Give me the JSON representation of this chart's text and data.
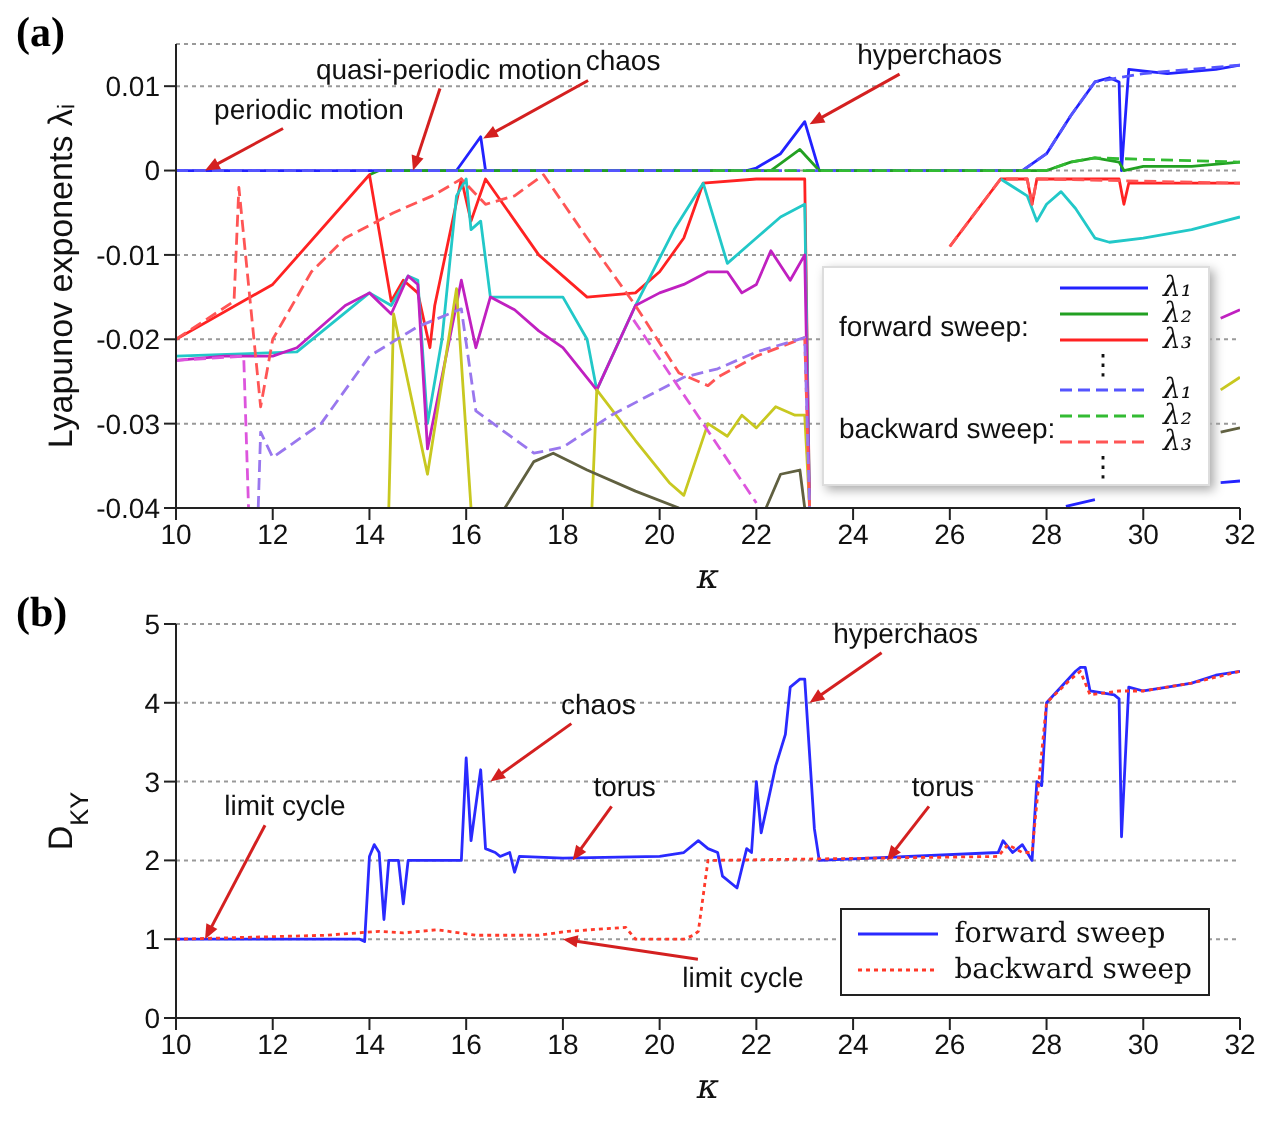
{
  "chart_data": [
    {
      "type": "line",
      "title": "(a)",
      "xlabel": "κ",
      "ylabel": "Lyapunov exponents λᵢ",
      "xlim": [
        10,
        32
      ],
      "xticks": [
        10,
        12,
        14,
        16,
        18,
        20,
        22,
        24,
        26,
        28,
        30,
        32
      ],
      "ylim": [
        -0.04,
        0.015
      ],
      "yticks": [
        -0.04,
        -0.03,
        -0.02,
        -0.01,
        0,
        0.01
      ],
      "grid": "y",
      "legend": "bottom right",
      "annotations": [
        {
          "text": "periodic motion",
          "x": 10.6,
          "y": 0
        },
        {
          "text": "quasi-periodic motion",
          "x": 14.9,
          "y": 0
        },
        {
          "text": "chaos",
          "x": 16.35,
          "y": 0.0038
        },
        {
          "text": "hyperchaos",
          "x": 23.1,
          "y": 0.0055
        },
        "forward sweep:",
        "⋮",
        "backward sweep:",
        "⋮"
      ],
      "series": [
        {
          "name": "λ₁",
          "color": "#2222ff",
          "x": [
            10,
            15.8,
            16.3,
            16.4,
            21.8,
            22.0,
            22.5,
            23.0,
            23.3,
            27.5,
            28.0,
            28.5,
            29.0,
            29.3,
            29.5,
            29.55,
            29.7,
            30.5,
            31.5,
            32
          ],
          "values": [
            0,
            0,
            0.004,
            0,
            0,
            0.0003,
            0.002,
            0.0058,
            0,
            0,
            0.002,
            0.0065,
            0.0105,
            0.011,
            0.0105,
            0,
            0.012,
            0.0115,
            0.012,
            0.0125
          ]
        },
        {
          "name": "λ₂",
          "color": "#22a022",
          "x": [
            14,
            14.2,
            22.3,
            22.9,
            23.3,
            28,
            28.5,
            29,
            29.5,
            29.6,
            30,
            31,
            32
          ],
          "values": [
            -0.0005,
            0,
            0,
            0.0025,
            0,
            0,
            0.001,
            0.0015,
            0.001,
            0,
            0.0005,
            0.0005,
            0.001
          ]
        },
        {
          "name": "λ₃",
          "color": "#ff2222",
          "x": [
            10,
            12,
            14,
            14.45,
            14.7,
            15.0,
            15.25,
            15.35,
            15.9,
            16.1,
            16.4,
            17.5,
            18.5,
            19.5,
            20.0,
            20.5,
            20.9,
            22,
            23.0,
            23.1,
            23.15,
            26.0,
            27.05,
            27.6,
            27.7,
            27.8,
            29.5,
            29.6,
            29.7,
            32
          ],
          "values": [
            -0.02,
            -0.0135,
            -0.0005,
            -0.0155,
            -0.013,
            -0.0145,
            -0.021,
            -0.016,
            -0.001,
            -0.006,
            -0.001,
            -0.01,
            -0.015,
            -0.0145,
            -0.012,
            -0.008,
            -0.0015,
            -0.001,
            -0.001,
            -0.04,
            null,
            -0.009,
            -0.001,
            -0.001,
            -0.004,
            -0.001,
            -0.001,
            -0.004,
            -0.0015,
            -0.0015
          ]
        },
        {
          "color": "#22c8c8",
          "x": [
            10,
            12.5,
            14,
            14.45,
            14.8,
            15.0,
            15.2,
            15.5,
            15.8,
            16.0,
            16.1,
            16.3,
            16.5,
            17,
            18,
            18.5,
            18.7,
            19.5,
            20.3,
            20.9,
            21.4,
            22,
            22.5,
            23.0,
            23.1,
            23.15,
            27.05,
            27.6,
            27.8,
            28.0,
            28.3,
            28.6,
            29.0,
            29.3,
            30,
            31,
            32
          ],
          "values": [
            -0.022,
            -0.0215,
            -0.0145,
            -0.016,
            -0.0125,
            -0.013,
            -0.03,
            -0.02,
            -0.003,
            -0.001,
            -0.007,
            -0.006,
            -0.015,
            -0.015,
            -0.015,
            -0.02,
            -0.026,
            -0.016,
            -0.007,
            -0.0015,
            -0.011,
            -0.008,
            -0.0055,
            -0.004,
            -0.04,
            null,
            -0.001,
            -0.003,
            -0.006,
            -0.004,
            -0.0025,
            -0.0045,
            -0.008,
            -0.0085,
            -0.008,
            -0.007,
            -0.0055
          ]
        },
        {
          "color": "#c020c0",
          "x": [
            10,
            11,
            12,
            12.5,
            13.5,
            14,
            14.45,
            14.8,
            15.0,
            15.2,
            15.9,
            16.2,
            16.5,
            17,
            17.5,
            18,
            18.7,
            19.5,
            20,
            20.5,
            21,
            21.4,
            21.7,
            22,
            22.3,
            22.7,
            23,
            23.1,
            23.15,
            31.6,
            32
          ],
          "values": [
            -0.0225,
            -0.022,
            -0.022,
            -0.021,
            -0.016,
            -0.0145,
            -0.017,
            -0.0125,
            -0.0135,
            -0.033,
            -0.013,
            -0.021,
            -0.015,
            -0.0165,
            -0.019,
            -0.021,
            -0.026,
            -0.016,
            -0.0145,
            -0.0135,
            -0.012,
            -0.012,
            -0.0145,
            -0.0135,
            -0.0095,
            -0.013,
            -0.01,
            -0.04,
            null,
            -0.0175,
            -0.0165
          ]
        },
        {
          "color": "#c8c820",
          "x": [
            14.4,
            14.5,
            15.2,
            15.8,
            16.1,
            16.15,
            18.6,
            18.7,
            19.5,
            20.2,
            20.5,
            21,
            21.4,
            21.7,
            22,
            22.4,
            22.8,
            23,
            23.1,
            23.15,
            31.6,
            32
          ],
          "values": [
            -0.04,
            -0.017,
            -0.036,
            -0.014,
            -0.04,
            null,
            -0.04,
            -0.026,
            -0.032,
            -0.037,
            -0.0385,
            -0.03,
            -0.0315,
            -0.029,
            -0.0305,
            -0.028,
            -0.029,
            -0.029,
            -0.04,
            null,
            -0.026,
            -0.0245
          ]
        },
        {
          "color": "#606040",
          "x": [
            16.8,
            17.4,
            17.8,
            18.5,
            19.5,
            20.4,
            20.5,
            22.2,
            22.5,
            22.9,
            23.0,
            23.05,
            31.6,
            32
          ],
          "values": [
            -0.04,
            -0.0345,
            -0.0335,
            -0.0355,
            -0.038,
            -0.04,
            null,
            -0.04,
            -0.036,
            -0.0355,
            -0.04,
            null,
            -0.031,
            -0.0305
          ]
        },
        {
          "color": "#2222ff",
          "x": [
            28.4,
            29,
            29.05,
            31.6,
            32
          ],
          "values": [
            -0.0398,
            -0.039,
            null,
            -0.037,
            -0.0368
          ]
        },
        {
          "name": "λ₁",
          "color": "#5555ff",
          "line_style": "dashed",
          "x": [
            10,
            27.5,
            28,
            28.5,
            29,
            29.5,
            30,
            31,
            32
          ],
          "values": [
            0,
            0,
            0.002,
            0.0065,
            0.0105,
            0.011,
            0.0115,
            0.012,
            0.0125
          ]
        },
        {
          "name": "λ₂",
          "color": "#33bb33",
          "line_style": "dashed",
          "x": [
            21.1,
            28,
            28.5,
            29,
            32
          ],
          "values": [
            0,
            0,
            0.001,
            0.0015,
            0.001
          ]
        },
        {
          "name": "λ₃",
          "color": "#ff5555",
          "line_style": "dashed",
          "x": [
            10,
            11.2,
            11.3,
            11.75,
            12,
            12.8,
            13.5,
            14.5,
            15.3,
            15.9,
            16.4,
            17,
            17.6,
            18.5,
            19.5,
            20.4,
            21,
            21.2,
            22,
            23,
            23.1,
            23.15,
            26,
            27.05,
            27.6,
            27.7,
            27.8,
            32
          ],
          "values": [
            -0.02,
            -0.0155,
            -0.002,
            -0.028,
            -0.02,
            -0.012,
            -0.008,
            -0.005,
            -0.003,
            -0.001,
            -0.004,
            -0.003,
            -0.0005,
            -0.008,
            -0.016,
            -0.024,
            -0.0255,
            -0.0245,
            -0.022,
            -0.0198,
            -0.04,
            null,
            -0.009,
            -0.001,
            -0.001,
            -0.004,
            -0.001,
            -0.0015
          ]
        },
        {
          "color": "#9977ee",
          "line_style": "dashed",
          "x": [
            11.7,
            11.75,
            12,
            13,
            14,
            15,
            15.9,
            16.2,
            17.4,
            18,
            19,
            20.5,
            21.2,
            22,
            23,
            23.1
          ],
          "values": [
            -0.04,
            -0.031,
            -0.034,
            -0.03,
            -0.022,
            -0.0185,
            -0.0164,
            -0.0285,
            -0.0335,
            -0.0328,
            -0.029,
            -0.0245,
            -0.0235,
            -0.0215,
            -0.0198,
            -0.04
          ]
        },
        {
          "color": "#dd55dd",
          "line_style": "dashed",
          "x": [
            10,
            11.4,
            11.5,
            11.55,
            19.46,
            22.0
          ],
          "values": [
            -0.0225,
            -0.022,
            -0.04,
            null,
            -0.0177,
            -0.0394
          ]
        }
      ]
    },
    {
      "type": "line",
      "title": "(b)",
      "xlabel": "κ",
      "ylabel": "D$_{KY}$",
      "xlim": [
        10,
        32
      ],
      "xticks": [
        10,
        12,
        14,
        16,
        18,
        20,
        22,
        24,
        26,
        28,
        30,
        32
      ],
      "ylim": [
        0,
        5
      ],
      "yticks": [
        0,
        1,
        2,
        3,
        4,
        5
      ],
      "grid": "y",
      "legend": "bottom right",
      "annotations": [
        {
          "text": "limit cycle",
          "x": 10.6,
          "y": 1.0
        },
        {
          "text": "chaos",
          "x": 16.5,
          "y": 3.0
        },
        {
          "text": "torus",
          "x": 18.2,
          "y": 2.0
        },
        {
          "text": "torus",
          "x": 24.7,
          "y": 2.0
        },
        {
          "text": "hyperchaos",
          "x": 23.1,
          "y": 4.0
        },
        {
          "text": "limit cycle",
          "x": 18.0,
          "y": 1.0
        }
      ],
      "series": [
        {
          "name": "forward sweep",
          "color": "#2a2aff",
          "x": [
            10,
            13.8,
            13.9,
            14.0,
            14.1,
            14.2,
            14.3,
            14.4,
            14.6,
            14.7,
            14.8,
            15.9,
            16.0,
            16.1,
            16.3,
            16.4,
            16.6,
            16.7,
            16.9,
            17.0,
            17.1,
            18,
            20,
            20.5,
            20.8,
            21.0,
            21.2,
            21.3,
            21.6,
            21.8,
            21.9,
            22.0,
            22.1,
            22.4,
            22.6,
            22.7,
            22.9,
            23.0,
            23.2,
            23.3,
            27.0,
            27.1,
            27.3,
            27.5,
            27.7,
            27.8,
            27.9,
            28.0,
            28.3,
            28.6,
            28.7,
            28.8,
            28.9,
            29.4,
            29.5,
            29.55,
            29.7,
            30,
            30.5,
            31,
            31.5,
            32
          ],
          "values": [
            1.0,
            1.0,
            0.97,
            2.05,
            2.2,
            2.1,
            1.25,
            2.0,
            2.0,
            1.45,
            2.0,
            2.0,
            3.3,
            2.25,
            3.15,
            2.15,
            2.1,
            2.05,
            2.1,
            1.85,
            2.05,
            2.03,
            2.05,
            2.1,
            2.25,
            2.15,
            2.1,
            1.8,
            1.65,
            2.15,
            2.1,
            3.0,
            2.35,
            3.2,
            3.6,
            4.2,
            4.3,
            4.3,
            2.4,
            2.0,
            2.1,
            2.25,
            2.1,
            2.2,
            2.0,
            3.0,
            2.95,
            4.0,
            4.2,
            4.4,
            4.45,
            4.45,
            4.15,
            4.1,
            4.05,
            2.3,
            4.2,
            4.15,
            4.2,
            4.25,
            4.35,
            4.4
          ]
        },
        {
          "name": "backward sweep",
          "color": "#ff3a2a",
          "line_style": "dotted",
          "x": [
            10,
            13.1,
            14.2,
            14.7,
            15.4,
            16.2,
            17.5,
            18.1,
            19.3,
            19.5,
            20.5,
            20.7,
            20.8,
            21.0,
            27,
            27.2,
            27.5,
            27.7,
            28.0,
            28.5,
            28.7,
            28.9,
            29.5,
            30,
            31,
            32
          ],
          "values": [
            1.0,
            1.05,
            1.1,
            1.08,
            1.12,
            1.05,
            1.05,
            1.1,
            1.15,
            1.0,
            1.0,
            1.05,
            1.1,
            2.0,
            2.05,
            2.2,
            2.1,
            2.1,
            4.0,
            4.3,
            4.4,
            4.1,
            4.15,
            4.15,
            4.25,
            4.4
          ]
        }
      ]
    }
  ]
}
